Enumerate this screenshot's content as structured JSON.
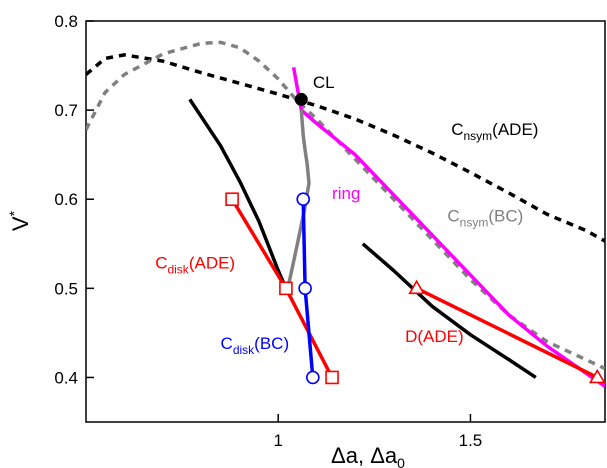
{
  "chart_data": {
    "type": "line",
    "xlabel": "Δa, Δa",
    "xlabel_sub": "0",
    "ylabel": "V",
    "ylabel_sup": "*",
    "xlim": [
      0.5,
      1.85
    ],
    "ylim": [
      0.35,
      0.8
    ],
    "xticks": [
      1.0,
      1.5
    ],
    "xtick_labels": [
      "1",
      "1.5"
    ],
    "yticks": [
      0.4,
      0.5,
      0.6,
      0.7,
      0.8
    ],
    "ytick_labels": [
      "0.4",
      "0.5",
      "0.6",
      "0.7",
      "0.8"
    ],
    "grid": false,
    "legend": "none",
    "series": [
      {
        "key": "cnsym_ade",
        "color": "#000000",
        "style": "dotted",
        "x": [
          0.5,
          0.55,
          0.6,
          0.7,
          0.8,
          0.9,
          1.0,
          1.1,
          1.2,
          1.3,
          1.4,
          1.5,
          1.6,
          1.7,
          1.8,
          1.85
        ],
        "y": [
          0.74,
          0.758,
          0.762,
          0.755,
          0.742,
          0.73,
          0.718,
          0.705,
          0.69,
          0.672,
          0.652,
          0.63,
          0.607,
          0.583,
          0.565,
          0.553
        ]
      },
      {
        "key": "cnsym_bc",
        "color": "#808080",
        "style": "dotted",
        "x": [
          0.5,
          0.55,
          0.6,
          0.7,
          0.8,
          0.85,
          0.9,
          0.95,
          1.0,
          1.05,
          1.1,
          1.2,
          1.3,
          1.4,
          1.5,
          1.6,
          1.7,
          1.8,
          1.85
        ],
        "y": [
          0.678,
          0.72,
          0.74,
          0.763,
          0.775,
          0.776,
          0.77,
          0.755,
          0.735,
          0.71,
          0.69,
          0.645,
          0.6,
          0.555,
          0.51,
          0.47,
          0.44,
          0.42,
          0.41
        ]
      },
      {
        "key": "ring",
        "color": "#ff00ff",
        "style": "solid",
        "x": [
          1.04,
          1.06,
          1.1,
          1.2,
          1.3,
          1.4,
          1.5,
          1.6,
          1.7,
          1.8,
          1.85
        ],
        "y": [
          0.748,
          0.7,
          0.685,
          0.65,
          0.605,
          0.56,
          0.515,
          0.47,
          0.435,
          0.405,
          0.39
        ]
      },
      {
        "key": "cdisk_bc_gray",
        "color": "#808080",
        "style": "solid",
        "x": [
          1.06,
          1.065,
          1.07,
          1.075,
          1.08,
          1.068,
          1.05,
          1.035,
          1.025
        ],
        "y": [
          0.7,
          0.672,
          0.655,
          0.64,
          0.618,
          0.588,
          0.55,
          0.52,
          0.5
        ]
      },
      {
        "key": "cdisk_ade_black",
        "color": "#000000",
        "style": "solid",
        "x": [
          0.77,
          0.85,
          0.9,
          0.95,
          1.0,
          1.02
        ],
        "y": [
          0.712,
          0.66,
          0.62,
          0.575,
          0.52,
          0.5
        ]
      },
      {
        "key": "d_ade_black",
        "color": "#000000",
        "style": "solid",
        "x": [
          1.22,
          1.3,
          1.4,
          1.5,
          1.6,
          1.67
        ],
        "y": [
          0.55,
          0.52,
          0.48,
          0.448,
          0.42,
          0.4
        ]
      },
      {
        "key": "cdisk_ade",
        "color": "#ff0000",
        "style": "solid",
        "marker": "square",
        "x": [
          0.88,
          1.02,
          1.14
        ],
        "y": [
          0.6,
          0.5,
          0.4
        ]
      },
      {
        "key": "cdisk_bc",
        "color": "#0000ff",
        "style": "solid",
        "marker": "circle",
        "x": [
          1.065,
          1.07,
          1.09
        ],
        "y": [
          0.6,
          0.5,
          0.4
        ]
      },
      {
        "key": "d_ade",
        "color": "#ff0000",
        "style": "solid",
        "marker": "triangle",
        "x": [
          1.36,
          1.83
        ],
        "y": [
          0.5,
          0.4
        ]
      }
    ],
    "point": {
      "key": "cl",
      "x": 1.06,
      "y": 0.712,
      "color": "#000000"
    },
    "annotations": [
      {
        "key": "cl",
        "text": "CL",
        "sub": "",
        "color": "#000000",
        "x": 1.09,
        "y": 0.725
      },
      {
        "key": "cnsym_ade",
        "text": "C",
        "sub": "nsym",
        "tail": "(ADE)",
        "color": "#000000",
        "x": 1.45,
        "y": 0.672
      },
      {
        "key": "ring",
        "text": "ring",
        "sub": "",
        "color": "#ff00ff",
        "x": 1.14,
        "y": 0.6
      },
      {
        "key": "cnsym_bc",
        "text": "C",
        "sub": "nsym",
        "tail": "(BC)",
        "color": "#808080",
        "x": 1.44,
        "y": 0.575
      },
      {
        "key": "cdisk_ade",
        "text": "C",
        "sub": "disk",
        "tail": "(ADE)",
        "color": "#ff0000",
        "x": 0.68,
        "y": 0.522
      },
      {
        "key": "cdisk_bc",
        "text": "C",
        "sub": "disk",
        "tail": "(BC)",
        "color": "#0000ff",
        "x": 0.85,
        "y": 0.432
      },
      {
        "key": "d_ade",
        "text": "D(ADE)",
        "sub": "",
        "color": "#ff0000",
        "x": 1.33,
        "y": 0.44
      }
    ]
  }
}
